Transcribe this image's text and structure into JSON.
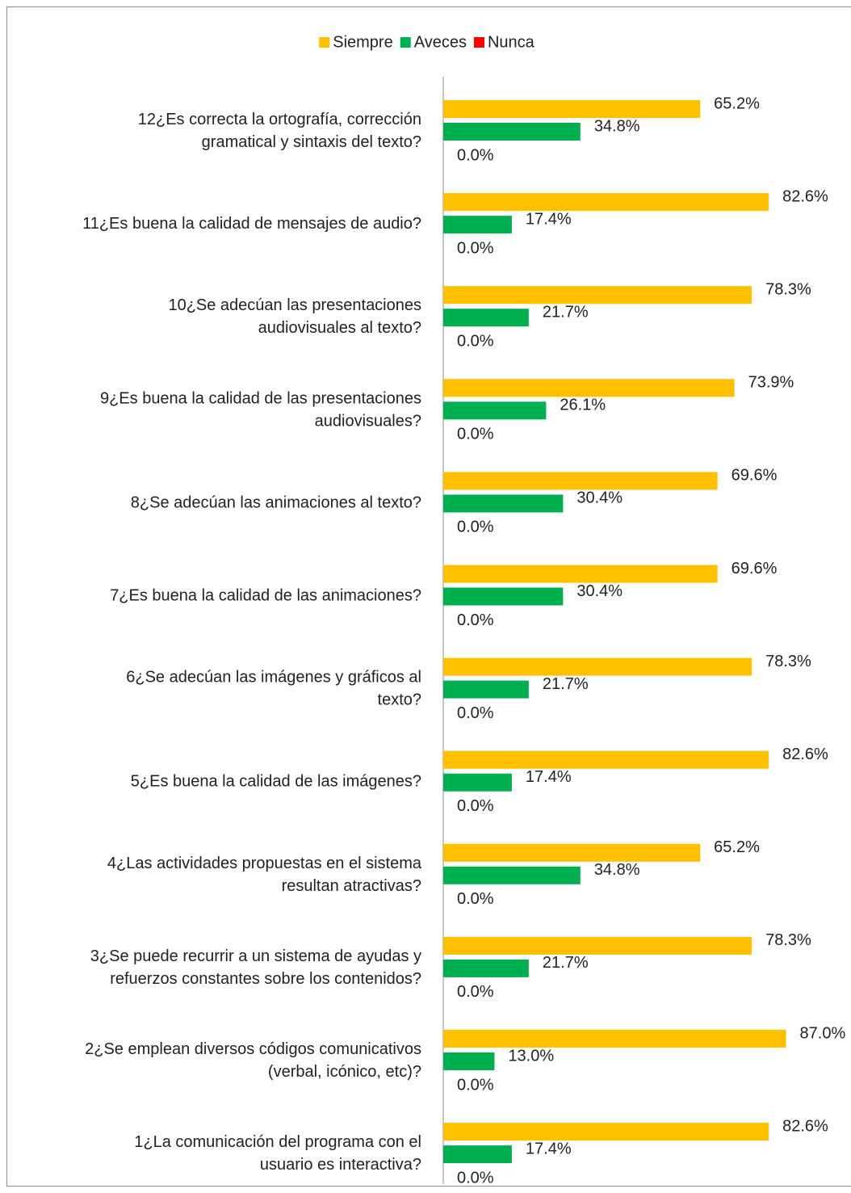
{
  "chart_data": {
    "type": "bar",
    "orientation": "horizontal",
    "categories": [
      "12¿Es correcta la ortografía, corrección\ngramatical y sintaxis del texto?",
      "11¿Es buena la calidad de mensajes de audio?",
      "10¿Se adecúan las presentaciones\naudiovisuales al texto?",
      "9¿Es buena la calidad de las presentaciones\naudiovisuales?",
      "8¿Se adecúan las animaciones al texto?",
      "7¿Es buena la calidad de las animaciones?",
      "6¿Se adecúan las imágenes y gráficos al\ntexto?",
      "5¿Es buena la calidad de las imágenes?",
      "4¿Las actividades propuestas en el sistema\nresultan atractivas?",
      "3¿Se puede recurrir a un sistema de ayudas y\nrefuerzos constantes sobre los contenidos?",
      "2¿Se emplean diversos códigos comunicativos\n(verbal, icónico, etc)?",
      "1¿La comunicación del programa con el\nusuario es interactiva?"
    ],
    "series": [
      {
        "name": "Siempre",
        "color": "#ffc000",
        "values": [
          65.2,
          82.6,
          78.3,
          73.9,
          69.6,
          69.6,
          78.3,
          82.6,
          65.2,
          78.3,
          87.0,
          82.6
        ],
        "value_labels": [
          "65.2%",
          "82.6%",
          "78.3%",
          "73.9%",
          "69.6%",
          "69.6%",
          "78.3%",
          "82.6%",
          "65.2%",
          "78.3%",
          "87.0%",
          "82.6%"
        ]
      },
      {
        "name": "Aveces",
        "color": "#00b050",
        "values": [
          34.8,
          17.4,
          21.7,
          26.1,
          30.4,
          30.4,
          21.7,
          17.4,
          34.8,
          21.7,
          13.0,
          17.4
        ],
        "value_labels": [
          "34.8%",
          "17.4%",
          "21.7%",
          "26.1%",
          "30.4%",
          "30.4%",
          "21.7%",
          "17.4%",
          "34.8%",
          "21.7%",
          "13.0%",
          "17.4%"
        ]
      },
      {
        "name": "Nunca",
        "color": "#ff0000",
        "values": [
          0,
          0,
          0,
          0,
          0,
          0,
          0,
          0,
          0,
          0,
          0,
          0
        ],
        "value_labels": [
          "0.0%",
          "0.0%",
          "0.0%",
          "0.0%",
          "0.0%",
          "0.0%",
          "0.0%",
          "0.0%",
          "0.0%",
          "0.0%",
          "0.0%",
          "0.0%"
        ]
      }
    ],
    "legend": "top"
  }
}
